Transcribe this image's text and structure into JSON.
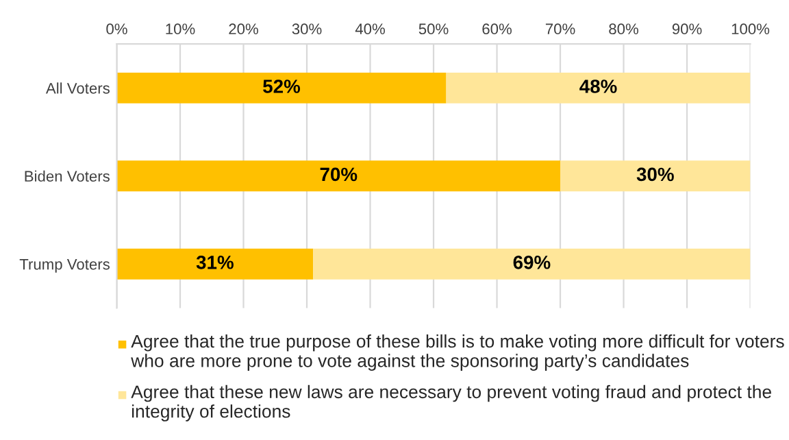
{
  "chart_data": {
    "type": "bar",
    "orientation": "horizontal",
    "stacked": true,
    "categories": [
      "All Voters",
      "Biden Voters",
      "Trump Voters"
    ],
    "series": [
      {
        "name": "Agree that the true purpose of these bills is to make voting more difficult for voters who are more prone to vote against the sponsoring party’s candidates",
        "color": "#ffc000",
        "values": [
          52,
          70,
          31
        ],
        "value_labels": [
          "52%",
          "70%",
          "31%"
        ]
      },
      {
        "name": "Agree that these new laws are necessary to prevent voting fraud and protect the integrity of elections",
        "color": "#ffe699",
        "values": [
          48,
          30,
          69
        ],
        "value_labels": [
          "48%",
          "30%",
          "69%"
        ]
      }
    ],
    "xlim": [
      0,
      100
    ],
    "xticks": [
      {
        "value": 0,
        "label": "0%"
      },
      {
        "value": 10,
        "label": "10%"
      },
      {
        "value": 20,
        "label": "20%"
      },
      {
        "value": 30,
        "label": "30%"
      },
      {
        "value": 40,
        "label": "40%"
      },
      {
        "value": 50,
        "label": "50%"
      },
      {
        "value": 60,
        "label": "60%"
      },
      {
        "value": 70,
        "label": "70%"
      },
      {
        "value": 80,
        "label": "80%"
      },
      {
        "value": 90,
        "label": "90%"
      },
      {
        "value": 100,
        "label": "100%"
      }
    ],
    "grid": "x",
    "legend": "bottom"
  }
}
